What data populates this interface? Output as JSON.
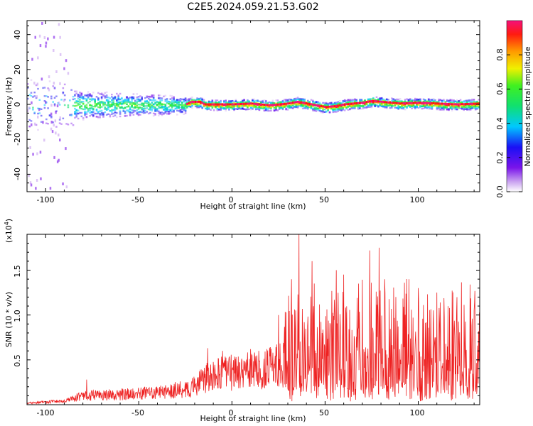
{
  "title": "C2E5.2024.059.21.53.G02",
  "colors": {
    "line": "#ee2222"
  },
  "chart_data": [
    {
      "type": "heatmap",
      "xlabel": "Height of straight line (km)",
      "ylabel": "Frequency (Hz)",
      "xlim": [
        -110,
        133
      ],
      "ylim": [
        -50,
        48
      ],
      "xticks": [
        -100,
        -50,
        0,
        50,
        100
      ],
      "yticks": [
        -40,
        -20,
        0,
        20,
        40
      ],
      "colorbar": {
        "label": "Normalized spectral amplitude",
        "ticks": [
          "0.0",
          "0.2",
          "0.4",
          "0.6",
          "0.8"
        ],
        "range": [
          0,
          1
        ],
        "colormap": "rainbow: white, violet, blue, cyan, green, yellow, orange, red, magenta"
      },
      "ridge": [
        {
          "x": -110,
          "y": 0
        },
        {
          "x": -25,
          "y": 0
        },
        {
          "x": -22,
          "y": 1.5
        },
        {
          "x": -17,
          "y": 1.5
        },
        {
          "x": -15,
          "y": 0
        },
        {
          "x": 0,
          "y": 0
        },
        {
          "x": 10,
          "y": 0.5
        },
        {
          "x": 20,
          "y": -0.5
        },
        {
          "x": 30,
          "y": 0.5
        },
        {
          "x": 35,
          "y": 1.5
        },
        {
          "x": 40,
          "y": 0.5
        },
        {
          "x": 50,
          "y": -1.5
        },
        {
          "x": 55,
          "y": -1
        },
        {
          "x": 60,
          "y": 0
        },
        {
          "x": 70,
          "y": 1
        },
        {
          "x": 75,
          "y": 2
        },
        {
          "x": 80,
          "y": 1.5
        },
        {
          "x": 90,
          "y": 0.5
        },
        {
          "x": 100,
          "y": 1
        },
        {
          "x": 110,
          "y": 0.5
        },
        {
          "x": 120,
          "y": 0
        },
        {
          "x": 133,
          "y": 0.5
        }
      ]
    },
    {
      "type": "line",
      "xlabel": "Height of straight line (km)",
      "ylabel": "SNR (10 * v/v)",
      "yscale_label": "(x10",
      "yscale_exp": "4",
      "yscale_close": ")",
      "xlim": [
        -110,
        133
      ],
      "ylim": [
        0.0,
        1.9
      ],
      "xticks": [
        -100,
        -50,
        0,
        50,
        100
      ],
      "yticks": [
        "0.5",
        "1.0",
        "1.5"
      ],
      "envelope": [
        {
          "x": -110,
          "y": 0.02
        },
        {
          "x": -90,
          "y": 0.05
        },
        {
          "x": -80,
          "y": 0.12
        },
        {
          "x": -60,
          "y": 0.14
        },
        {
          "x": -40,
          "y": 0.16
        },
        {
          "x": -30,
          "y": 0.2
        },
        {
          "x": -22,
          "y": 0.22
        },
        {
          "x": -15,
          "y": 0.35
        },
        {
          "x": -5,
          "y": 0.42
        },
        {
          "x": 5,
          "y": 0.45
        },
        {
          "x": 10,
          "y": 0.45
        },
        {
          "x": 20,
          "y": 0.5
        },
        {
          "x": 30,
          "y": 0.55
        },
        {
          "x": 40,
          "y": 0.6
        },
        {
          "x": 60,
          "y": 0.6
        },
        {
          "x": 80,
          "y": 0.62
        },
        {
          "x": 100,
          "y": 0.6
        },
        {
          "x": 120,
          "y": 0.6
        },
        {
          "x": 133,
          "y": 0.6
        }
      ],
      "peaks": [
        {
          "x": 36,
          "y": 1.9
        },
        {
          "x": 79,
          "y": 1.75
        },
        {
          "x": 74,
          "y": 1.72
        },
        {
          "x": 43,
          "y": 1.6
        },
        {
          "x": 32,
          "y": 1.4
        },
        {
          "x": 56,
          "y": 1.5
        },
        {
          "x": 60,
          "y": 1.45
        },
        {
          "x": 68,
          "y": 1.35
        },
        {
          "x": 82,
          "y": 1.4
        },
        {
          "x": 95,
          "y": 1.4
        },
        {
          "x": 100,
          "y": 1.3
        },
        {
          "x": 110,
          "y": 1.25
        },
        {
          "x": 116,
          "y": 1.1
        },
        {
          "x": 130,
          "y": 1.05
        },
        {
          "x": 25,
          "y": 1.0
        },
        {
          "x": -13,
          "y": 0.63
        },
        {
          "x": -5,
          "y": 0.6
        },
        {
          "x": 10,
          "y": 0.62
        },
        {
          "x": -78,
          "y": 0.28
        }
      ]
    }
  ]
}
